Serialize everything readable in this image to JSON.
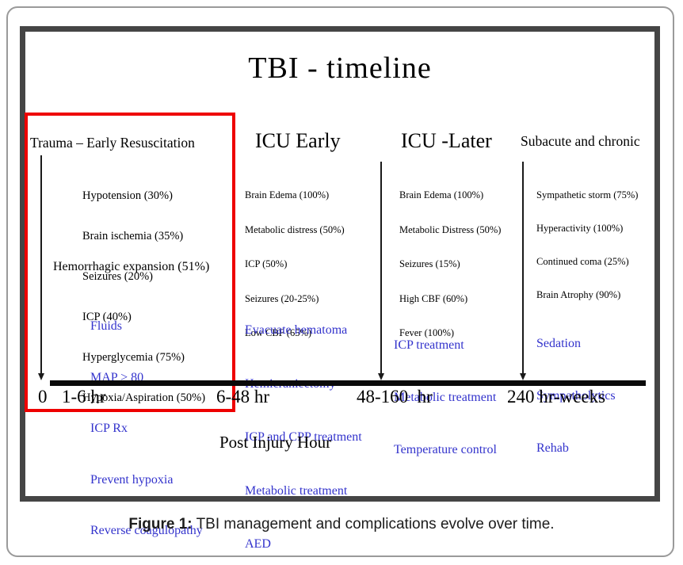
{
  "figure": {
    "title": "TBI - timeline",
    "axis_label": "Post Injury Hour",
    "timeline_ticks": [
      "0",
      "1-6 hr",
      "6-48 hr",
      "48-160  hr",
      "240 hr-weeks"
    ],
    "phases": [
      {
        "header": "Trauma – Early Resuscitation",
        "highlighted": true,
        "complications": [
          "Hypotension (30%)",
          "Brain ischemia (35%)",
          "Seizures (20%)",
          "ICP (40%)",
          "Hyperglycemia (75%)",
          "Hypoxia/Aspiration (50%)"
        ],
        "expansion_note": "Hemorrhagic expansion (51%)",
        "treatments": [
          "Fluids",
          "MAP > 80",
          "ICP Rx",
          "Prevent hypoxia",
          "Reverse coagulopathy"
        ]
      },
      {
        "header": "ICU Early",
        "highlighted": false,
        "complications": [
          "Brain Edema (100%)",
          "Metabolic distress (50%)",
          "ICP (50%)",
          "Seizures (20-25%)",
          "Low CBF (65%)"
        ],
        "treatments": [
          "Evacuate hematoma",
          "Hemicraniectomy",
          "ICP and CPP treatment",
          "Metabolic treatment",
          "AED"
        ]
      },
      {
        "header": "ICU -Later",
        "highlighted": false,
        "complications": [
          "Brain Edema (100%)",
          "Metabolic Distress (50%)",
          "Seizures (15%)",
          "High CBF (60%)",
          "Fever (100%)"
        ],
        "treatments": [
          "ICP treatment",
          "Metabolic treatment",
          "Temperature control"
        ]
      },
      {
        "header": "Subacute and chronic",
        "highlighted": false,
        "complications": [
          "Sympathetic storm (75%)",
          "Hyperactivity (100%)",
          "Continued coma (25%)",
          "Brain Atrophy (90%)"
        ],
        "treatments": [
          "Sedation",
          "Sympatholytics",
          "Rehab"
        ]
      }
    ]
  },
  "caption": {
    "label": "Figure 1:",
    "text": "TBI management and complications evolve over time."
  },
  "colors": {
    "treatment_text": "#3333cc",
    "complication_text": "#000000",
    "highlight_box": "#ee0000",
    "frame": "#454545",
    "timeline_bar": "#0a0a0a"
  }
}
